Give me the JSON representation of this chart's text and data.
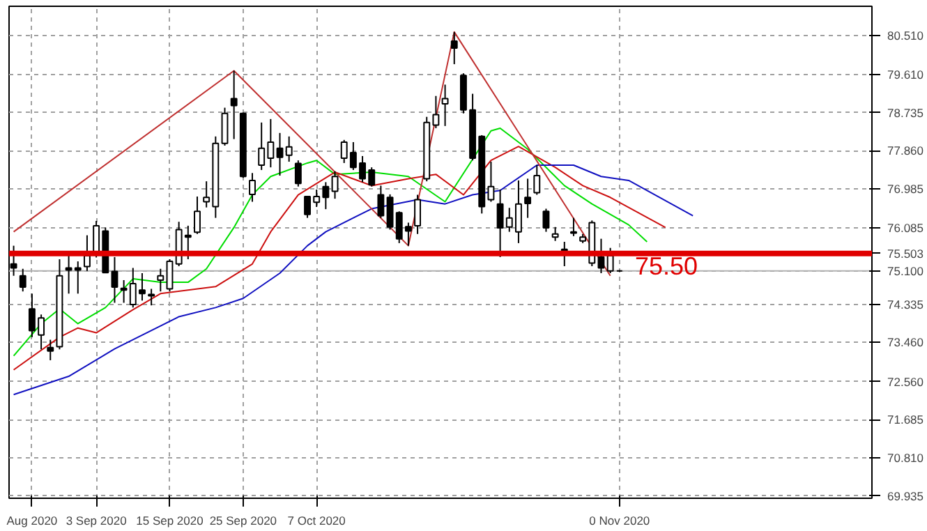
{
  "chart_data": {
    "type": "candlestick",
    "categories": [
      null,
      null,
      "Aug 2020",
      null,
      null,
      null,
      null,
      null,
      null,
      "3 Sep 2020",
      null,
      null,
      null,
      null,
      null,
      null,
      null,
      "15 Sep 2020",
      null,
      null,
      null,
      null,
      null,
      null,
      null,
      "25 Sep 2020",
      null,
      null,
      null,
      null,
      null,
      null,
      null,
      "7 Oct 2020",
      null,
      null,
      null,
      null,
      null,
      null,
      null,
      null,
      null,
      null,
      null,
      null,
      null,
      null,
      null,
      null,
      null,
      null,
      null,
      null,
      null,
      null,
      null,
      null,
      null,
      null,
      null,
      null,
      null,
      null,
      null,
      null,
      "0 Nov 2020",
      null,
      null,
      null,
      null,
      null,
      null,
      null,
      null,
      null,
      null,
      null,
      null,
      null,
      null,
      null,
      null,
      null,
      null,
      null,
      null,
      null,
      null,
      null,
      null,
      null,
      null,
      null
    ],
    "ohlc": [
      [
        75.26,
        75.68,
        74.99,
        75.17
      ],
      [
        74.99,
        75.15,
        74.63,
        74.73
      ],
      [
        74.23,
        74.58,
        73.58,
        73.73
      ],
      [
        73.63,
        74.1,
        73.3,
        74.02
      ],
      [
        73.34,
        73.52,
        73.05,
        73.26
      ],
      [
        73.36,
        75.37,
        73.3,
        74.99
      ],
      [
        75.17,
        75.49,
        74.58,
        75.12
      ],
      [
        75.17,
        75.32,
        74.58,
        75.12
      ],
      [
        75.2,
        75.92,
        75.1,
        75.45
      ],
      [
        75.49,
        76.25,
        75.41,
        76.14
      ],
      [
        76.02,
        76.1,
        75.05,
        75.06
      ],
      [
        75.09,
        75.42,
        74.37,
        74.73
      ],
      [
        74.7,
        74.89,
        74.37,
        74.66
      ],
      [
        74.33,
        75.17,
        74.26,
        74.81
      ],
      [
        74.66,
        75.05,
        74.42,
        74.58
      ],
      [
        74.56,
        74.69,
        74.31,
        74.53
      ],
      [
        74.89,
        75.15,
        74.63,
        74.99
      ],
      [
        74.69,
        75.37,
        74.63,
        75.32
      ],
      [
        75.26,
        76.23,
        75.21,
        76.05
      ],
      [
        75.92,
        76.14,
        75.37,
        75.88
      ],
      [
        75.99,
        76.81,
        75.95,
        76.47
      ],
      [
        76.69,
        77.16,
        76.56,
        76.79
      ],
      [
        76.58,
        78.19,
        76.32,
        78.03
      ],
      [
        78.03,
        78.85,
        77.98,
        78.72
      ],
      [
        79.06,
        79.7,
        78.13,
        78.9
      ],
      [
        78.72,
        78.74,
        77.24,
        77.27
      ],
      [
        76.86,
        77.35,
        76.69,
        77.18
      ],
      [
        77.53,
        78.51,
        77.42,
        77.92
      ],
      [
        77.69,
        78.59,
        77.48,
        78.06
      ],
      [
        77.92,
        78.27,
        77.29,
        77.71
      ],
      [
        77.76,
        78.19,
        77.61,
        77.95
      ],
      [
        77.57,
        77.64,
        77.04,
        77.11
      ],
      [
        76.81,
        76.81,
        76.32,
        76.4
      ],
      [
        76.68,
        76.97,
        76.57,
        76.81
      ],
      [
        77.04,
        77.14,
        76.52,
        76.79
      ],
      [
        76.93,
        77.39,
        76.76,
        77.27
      ],
      [
        77.69,
        78.11,
        77.58,
        78.06
      ],
      [
        77.82,
        78.06,
        77.42,
        77.48
      ],
      [
        77.58,
        77.74,
        77.14,
        77.22
      ],
      [
        77.42,
        77.48,
        77.04,
        77.08
      ],
      [
        76.85,
        77.06,
        76.32,
        76.37
      ],
      [
        76.79,
        76.86,
        76.05,
        76.11
      ],
      [
        76.44,
        76.47,
        75.74,
        75.84
      ],
      [
        76.12,
        76.21,
        75.68,
        76.02
      ],
      [
        76.14,
        76.85,
        75.95,
        76.74
      ],
      [
        77.22,
        78.64,
        77.16,
        78.51
      ],
      [
        78.45,
        79.12,
        78.38,
        78.69
      ],
      [
        78.94,
        79.38,
        78.43,
        79.06
      ],
      [
        80.38,
        80.59,
        79.85,
        80.22
      ],
      [
        79.59,
        79.64,
        78.72,
        78.8
      ],
      [
        78.8,
        79.17,
        77.64,
        77.69
      ],
      [
        78.19,
        78.22,
        76.42,
        76.58
      ],
      [
        76.74,
        77.61,
        76.69,
        77.04
      ],
      [
        76.64,
        76.97,
        75.42,
        76.09
      ],
      [
        76.11,
        76.55,
        76.0,
        76.32
      ],
      [
        76.0,
        77.18,
        75.74,
        76.64
      ],
      [
        76.79,
        77.22,
        76.32,
        76.65
      ],
      [
        76.9,
        77.53,
        76.85,
        77.29
      ],
      [
        76.47,
        76.53,
        76.0,
        76.09
      ],
      [
        75.88,
        76.11,
        75.79,
        75.95
      ],
      [
        75.6,
        75.77,
        75.21,
        75.56
      ],
      [
        75.97,
        76.32,
        75.9,
        76.0
      ],
      [
        75.79,
        75.95,
        75.74,
        75.88
      ],
      [
        75.28,
        76.26,
        75.21,
        76.21
      ],
      [
        75.42,
        75.84,
        75.05,
        75.17
      ],
      [
        75.1,
        75.63,
        75.05,
        75.45
      ],
      [
        75.1,
        75.12,
        75.08,
        75.1
      ],
      null,
      null,
      null,
      null,
      null,
      null,
      null,
      null,
      null,
      null,
      null,
      null,
      null,
      null,
      null,
      null,
      null,
      null,
      null,
      null,
      null,
      null,
      null,
      null,
      null,
      null,
      null
    ],
    "series": [
      {
        "type": "line",
        "color": "#00dd00",
        "values": [
          73.15,
          null,
          null,
          73.89,
          null,
          74.23,
          null,
          73.89,
          null,
          null,
          74.26,
          null,
          null,
          74.92,
          null,
          null,
          74.84,
          null,
          null,
          74.84,
          null,
          75.15,
          null,
          null,
          76.1,
          null,
          76.85,
          null,
          77.27,
          null,
          null,
          null,
          77.58,
          77.64,
          null,
          77.32,
          null,
          null,
          null,
          77.37,
          null,
          null,
          null,
          77.27,
          null,
          null,
          null,
          76.69,
          null,
          null,
          null,
          null,
          78.32,
          78.38,
          null,
          null,
          77.9,
          null,
          null,
          77.27,
          77.06,
          null,
          null,
          76.64,
          null,
          null,
          null,
          76.16,
          null,
          75.77,
          null,
          null,
          null,
          null,
          null,
          null,
          null,
          null,
          null,
          null,
          null,
          null,
          null,
          null,
          null,
          null,
          null,
          null,
          null,
          null,
          null,
          null,
          null,
          null
        ]
      },
      {
        "type": "line",
        "color": "#cc1010",
        "values": [
          72.83,
          null,
          null,
          null,
          null,
          73.58,
          null,
          73.79,
          null,
          73.68,
          null,
          null,
          null,
          74.21,
          null,
          null,
          74.58,
          null,
          null,
          null,
          null,
          null,
          74.74,
          null,
          null,
          null,
          75.26,
          null,
          76.0,
          null,
          null,
          76.85,
          null,
          null,
          null,
          77.37,
          null,
          null,
          null,
          77.06,
          null,
          null,
          null,
          77.22,
          null,
          null,
          77.32,
          null,
          null,
          76.85,
          null,
          null,
          77.64,
          null,
          null,
          77.96,
          null,
          null,
          null,
          77.48,
          null,
          null,
          77.06,
          null,
          null,
          76.79,
          null,
          null,
          null,
          null,
          null,
          76.1,
          null,
          null,
          null,
          null,
          null,
          null,
          null,
          null,
          null,
          null,
          null,
          null,
          null,
          null,
          null,
          null,
          null,
          null,
          null,
          null,
          null,
          null
        ]
      },
      {
        "type": "line",
        "color": "#1010c0",
        "values": [
          72.26,
          null,
          null,
          null,
          null,
          null,
          72.68,
          null,
          null,
          null,
          null,
          73.31,
          null,
          null,
          null,
          null,
          null,
          null,
          74.05,
          null,
          null,
          null,
          74.26,
          null,
          null,
          74.47,
          null,
          null,
          null,
          75.05,
          null,
          null,
          75.68,
          null,
          76.0,
          null,
          null,
          null,
          null,
          76.53,
          null,
          null,
          null,
          null,
          76.74,
          null,
          null,
          76.64,
          null,
          null,
          76.85,
          null,
          null,
          76.95,
          null,
          null,
          null,
          77.53,
          null,
          null,
          null,
          77.53,
          null,
          null,
          77.27,
          null,
          null,
          77.18,
          null,
          null,
          null,
          null,
          null,
          null,
          76.37,
          null,
          null,
          null,
          null,
          null,
          null,
          null,
          null,
          null,
          null,
          null,
          null,
          null,
          null,
          null,
          null,
          null,
          null,
          null
        ]
      },
      {
        "type": "line",
        "color": "#c03030",
        "values": [
          76.0,
          null,
          null,
          null,
          null,
          null,
          null,
          null,
          null,
          null,
          null,
          null,
          null,
          null,
          null,
          null,
          null,
          null,
          null,
          null,
          null,
          null,
          null,
          null,
          79.7,
          null,
          null,
          null,
          null,
          null,
          null,
          null,
          null,
          null,
          null,
          null,
          null,
          null,
          null,
          null,
          null,
          null,
          null,
          75.68,
          null,
          null,
          null,
          null,
          80.59,
          null,
          null,
          null,
          null,
          null,
          null,
          null,
          null,
          null,
          null,
          null,
          null,
          null,
          null,
          null,
          null,
          74.99,
          null,
          null,
          null,
          null,
          null,
          null,
          null,
          null,
          null,
          null,
          null,
          null,
          null,
          null,
          null,
          null,
          null,
          null,
          null,
          null,
          null,
          null,
          null,
          null,
          null,
          null,
          null,
          null
        ]
      }
    ],
    "ref_lines": [
      {
        "axis": "y",
        "value": 75.503,
        "label": "75.50",
        "color": "#e00000"
      },
      {
        "axis": "y",
        "value": 75.1,
        "label": null,
        "color": "#b0b0b0"
      }
    ],
    "ylim": [
      69.88,
      81.18
    ],
    "yticks": [
      {
        "value": 69.935,
        "label": "69.935"
      },
      {
        "value": 70.81,
        "label": "70.810"
      },
      {
        "value": 71.685,
        "label": "71.685"
      },
      {
        "value": 72.56,
        "label": "72.560"
      },
      {
        "value": 73.46,
        "label": "73.460"
      },
      {
        "value": 74.335,
        "label": "74.335"
      },
      {
        "value": 75.1,
        "label": "75.100"
      },
      {
        "value": 75.503,
        "label": "75.503"
      },
      {
        "value": 76.085,
        "label": "76.085"
      },
      {
        "value": 76.985,
        "label": "76.985"
      },
      {
        "value": 77.86,
        "label": "77.860"
      },
      {
        "value": 78.735,
        "label": "78.735"
      },
      {
        "value": 79.61,
        "label": "79.610"
      },
      {
        "value": 80.51,
        "label": "80.510"
      }
    ],
    "grid": true
  }
}
